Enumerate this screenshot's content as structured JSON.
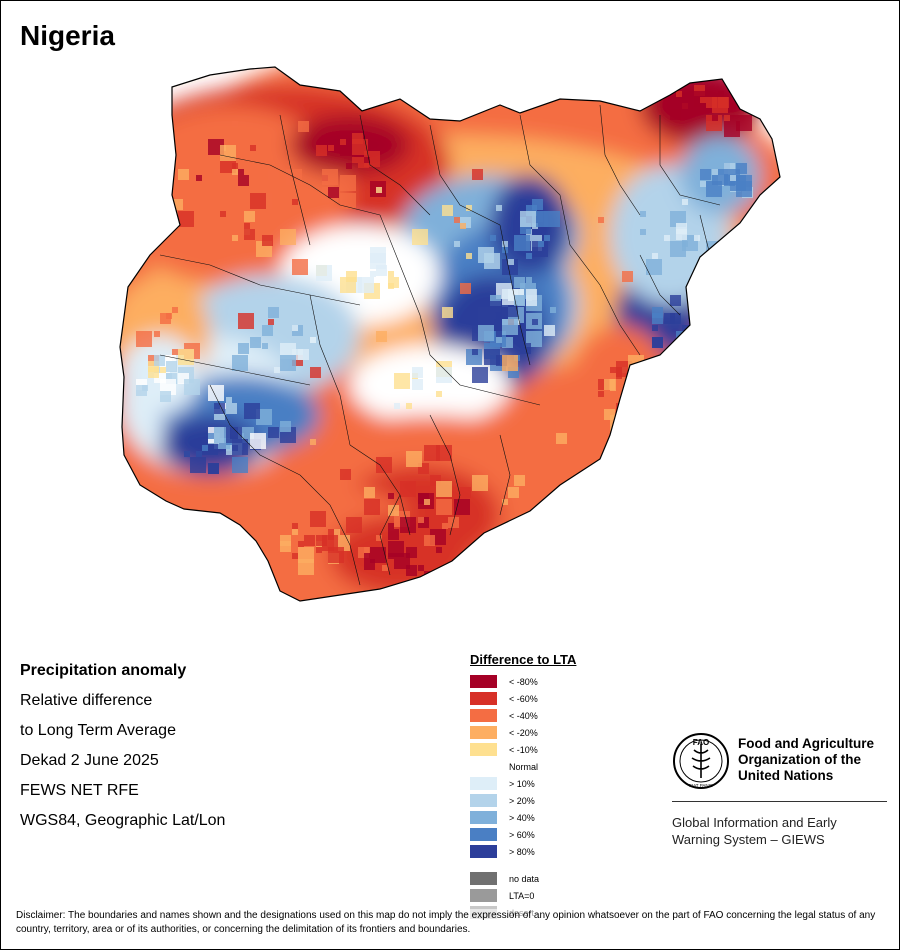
{
  "header": {
    "title": "Nigeria"
  },
  "info": {
    "lines": [
      "Precipitation anomaly",
      "Relative difference",
      "to Long Term Average",
      "Dekad 2 June 2025",
      "FEWS NET RFE",
      "WGS84, Geographic Lat/Lon"
    ]
  },
  "legend": {
    "title": "Difference to LTA",
    "items": [
      {
        "label": "< -80%",
        "color": "#a50026"
      },
      {
        "label": "< -60%",
        "color": "#d73027"
      },
      {
        "label": "< -40%",
        "color": "#f46d43"
      },
      {
        "label": "< -20%",
        "color": "#fdae61"
      },
      {
        "label": "< -10%",
        "color": "#fee090"
      },
      {
        "label": "Normal",
        "color": "#ffffff"
      },
      {
        "label": "> 10%",
        "color": "#deeef8"
      },
      {
        "label": "> 20%",
        "color": "#b3d3ea"
      },
      {
        "label": "> 40%",
        "color": "#7fb0da"
      },
      {
        "label": "> 60%",
        "color": "#4a7fc4"
      },
      {
        "label": "> 80%",
        "color": "#2c3e9a"
      }
    ],
    "extra": [
      {
        "label": "no data",
        "color": "#707070"
      },
      {
        "label": "LTA=0",
        "color": "#9a9a9a"
      },
      {
        "label": "desert",
        "color": "#c8c8c8"
      }
    ]
  },
  "branding": {
    "org_name": "Food and Agriculture Organization of the United Nations",
    "logo_text": "FAO",
    "motto": "FIAT PANIS",
    "system_name": "Global Information and Early Warning System – GIEWS"
  },
  "disclaimer": "Disclaimer: The boundaries and names shown and the designations used on this map do not imply the expression of any opinion whatsoever on the part of FAO concerning the legal status of any country, territory, area or of its authorities, or concerning the delimitation of its frontiers and boundaries.",
  "map": {
    "region": "Nigeria",
    "anomaly_zones": [
      {
        "area": "north-west",
        "category": "< -60%"
      },
      {
        "area": "far north-east",
        "category": "< -80%"
      },
      {
        "area": "north-central / north-east interior",
        "category": "> 80%"
      },
      {
        "area": "east",
        "category": "> 80%"
      },
      {
        "area": "south-west",
        "category": "> 80%"
      },
      {
        "area": "south-east",
        "category": "< -60%"
      },
      {
        "area": "south coast",
        "category": "< -40%"
      },
      {
        "area": "central",
        "category": "Normal"
      }
    ]
  }
}
